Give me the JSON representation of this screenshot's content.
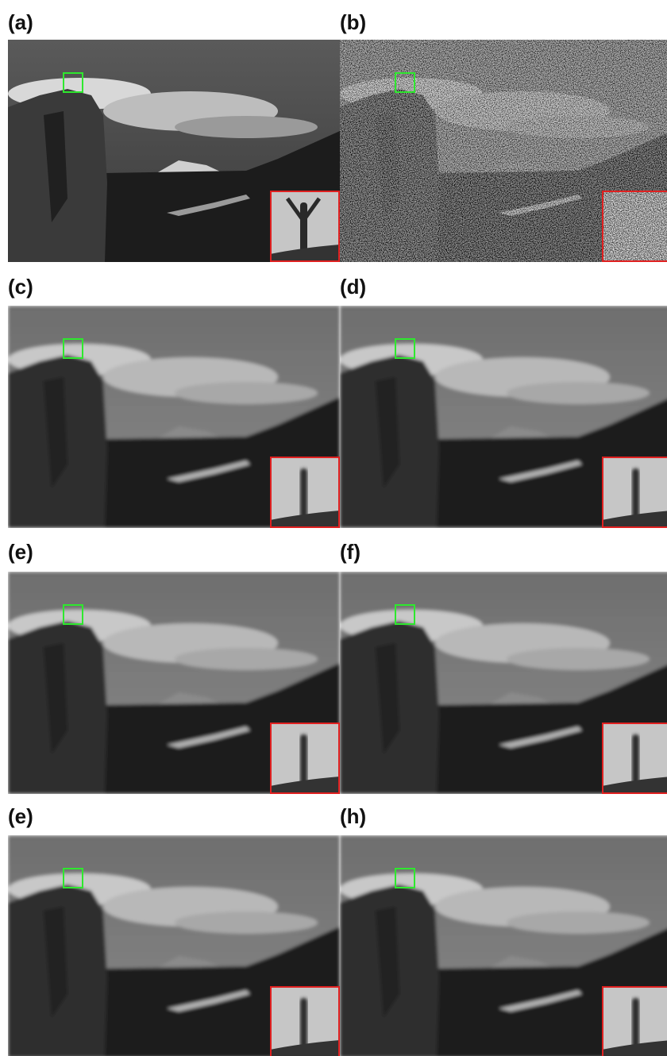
{
  "panels": [
    {
      "label": "(a)"
    },
    {
      "label": "(b)"
    },
    {
      "label": "(c)"
    },
    {
      "label": "(d)"
    },
    {
      "label": "(e)"
    },
    {
      "label": "(f)"
    },
    {
      "label": "(e)"
    },
    {
      "label": "(h)"
    }
  ]
}
